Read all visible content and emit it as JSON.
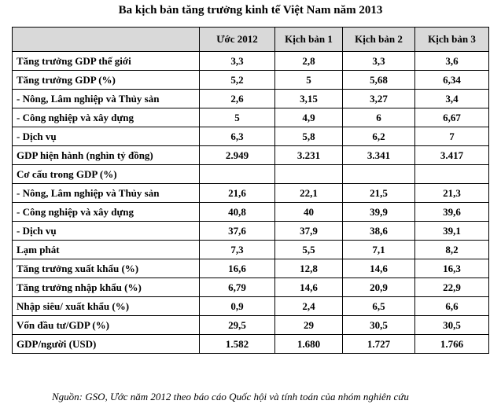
{
  "title": "Ba kịch bản tăng trưởng kinh tế Việt Nam năm 2013",
  "table": {
    "headers": [
      "",
      "Ước 2012",
      "Kịch bản 1",
      "Kịch bản 2",
      "Kịch bản 3"
    ],
    "rows": [
      [
        "Tăng trưởng GDP thế giới",
        "3,3",
        "2,8",
        "3,3",
        "3,6"
      ],
      [
        "Tăng trưởng GDP (%)",
        "5,2",
        "5",
        "5,68",
        "6,34"
      ],
      [
        "- Nông, Lâm nghiệp và Thủy sản",
        "2,6",
        "3,15",
        "3,27",
        "3,4"
      ],
      [
        "- Công nghiệp và xây dựng",
        "5",
        "4,9",
        "6",
        "6,67"
      ],
      [
        "- Dịch vụ",
        "6,3",
        "5,8",
        "6,2",
        "7"
      ],
      [
        "GDP hiện hành (nghìn tỷ đồng)",
        "2.949",
        "3.231",
        "3.341",
        "3.417"
      ],
      [
        "Cơ cấu trong GDP (%)",
        "",
        "",
        "",
        ""
      ],
      [
        "- Nông, Lâm nghiệp và Thủy sản",
        "21,6",
        "22,1",
        "21,5",
        "21,3"
      ],
      [
        "- Công nghiệp và xây dựng",
        "40,8",
        "40",
        "39,9",
        "39,6"
      ],
      [
        "- Dịch vụ",
        "37,6",
        "37,9",
        "38,6",
        "39,1"
      ],
      [
        "Lạm phát",
        "7,3",
        "5,5",
        "7,1",
        "8,2"
      ],
      [
        "Tăng trưởng xuất khẩu (%)",
        "16,6",
        "12,8",
        "14,6",
        "16,3"
      ],
      [
        "Tăng trưởng nhập khẩu (%)",
        "6,79",
        "14,6",
        "20,9",
        "22,9"
      ],
      [
        "Nhập siêu/ xuất khẩu (%)",
        "0,9",
        "2,4",
        "6,5",
        "6,6"
      ],
      [
        "Vốn đầu tư/GDP (%)",
        "29,5",
        "29",
        "30,5",
        "30,5"
      ],
      [
        "GDP/người (USD)",
        "1.582",
        "1.680",
        "1.727",
        "1.766"
      ]
    ]
  },
  "source": "Nguồn: GSO, Ước năm 2012 theo báo cáo Quốc hội và tính toán của nhóm nghiên cứu"
}
